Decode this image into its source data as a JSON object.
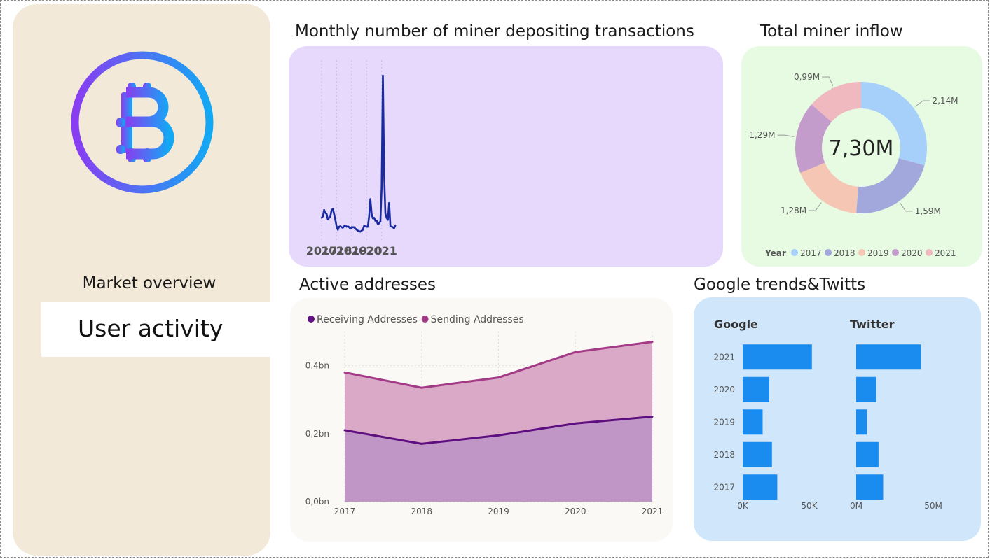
{
  "sidebar": {
    "nav": [
      {
        "label": "Market overview",
        "active": false
      },
      {
        "label": "User activity",
        "active": true
      }
    ]
  },
  "charts": {
    "deposits": {
      "title": "Monthly number of miner depositing transactions"
    },
    "inflow": {
      "title": "Total miner inflow",
      "center_value": "7,30M"
    },
    "addresses": {
      "title": "Active addresses"
    },
    "trends": {
      "title": "Google trends&Twitts"
    }
  },
  "chart_data": [
    {
      "id": "deposits",
      "type": "line",
      "x_labels": [
        "2017",
        "2018",
        "2019",
        "2020",
        "2021"
      ],
      "color": "#1a2aa0",
      "values": [
        22,
        25,
        38,
        32,
        30,
        19,
        22,
        25,
        38,
        40,
        30,
        18,
        5,
        -2,
        4,
        5,
        3,
        2,
        5,
        6,
        4,
        5,
        3,
        0,
        3,
        3,
        3,
        0,
        -2,
        -4,
        -5,
        -6,
        -4,
        -2,
        6,
        5,
        4,
        4,
        25,
        60,
        30,
        21,
        22,
        16,
        16,
        9,
        11,
        15,
        82,
        310,
        108,
        31,
        22,
        18,
        52,
        5,
        4,
        3,
        1,
        7
      ],
      "ylim": [
        -10,
        330
      ]
    },
    {
      "id": "inflow",
      "type": "pie",
      "legend_title": "Year",
      "legend_position": "bottom",
      "slices": [
        {
          "label": "2017",
          "value": 2.14,
          "display": "2,14M",
          "color": "#a6cffa"
        },
        {
          "label": "2018",
          "value": 1.59,
          "display": "1,59M",
          "color": "#a3a8dc"
        },
        {
          "label": "2019",
          "value": 1.28,
          "display": "1,28M",
          "color": "#f5c6b4"
        },
        {
          "label": "2020",
          "value": 1.29,
          "display": "1,29M",
          "color": "#c39ccb"
        },
        {
          "label": "2021",
          "value": 0.99,
          "display": "0,99M",
          "color": "#f0b8bf"
        }
      ]
    },
    {
      "id": "addresses",
      "type": "area",
      "legend_position": "top-left",
      "categories": [
        "2017",
        "2018",
        "2019",
        "2020",
        "2021"
      ],
      "y_ticks": [
        "0,0bn",
        "0,2bn",
        "0,4bn"
      ],
      "ylim": [
        0,
        0.5
      ],
      "grid": true,
      "series": [
        {
          "name": "Receiving Addresses",
          "values": [
            0.21,
            0.17,
            0.195,
            0.23,
            0.25
          ],
          "color": "#5e0f7f",
          "fill": "#c096c6"
        },
        {
          "name": "Sending Addresses",
          "values": [
            0.38,
            0.335,
            0.365,
            0.44,
            0.47
          ],
          "color": "#a33a86",
          "fill": "#dba9c8"
        }
      ]
    },
    {
      "id": "trends",
      "type": "bar",
      "categories": [
        "2021",
        "2020",
        "2019",
        "2018",
        "2017"
      ],
      "color": "#1a8cf0",
      "panels": [
        {
          "name": "Google",
          "values": [
            52000,
            20000,
            15000,
            22000,
            26000
          ],
          "ticks": [
            "0K",
            "50K"
          ],
          "max_tick": 50000
        },
        {
          "name": "Twitter",
          "values": [
            42000000,
            13000000,
            7000000,
            14500000,
            17500000
          ],
          "ticks": [
            "0M",
            "50M"
          ],
          "max_tick": 50000000
        }
      ]
    }
  ]
}
